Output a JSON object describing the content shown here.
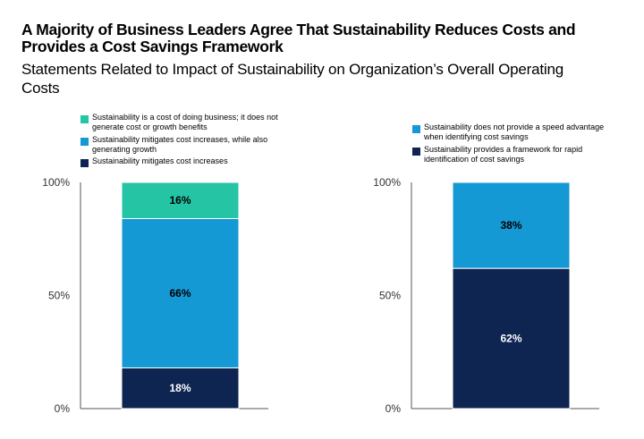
{
  "title": "A Majority of Business Leaders Agree That Sustainability Reduces Costs and Provides a Cost Savings Framework",
  "subtitle": "Statements Related to Impact of Sustainability on Organization’s Overall Operating Costs",
  "chart_data": [
    {
      "type": "bar",
      "stacked": true,
      "categories": [
        ""
      ],
      "ylim": [
        0,
        100
      ],
      "yticks": [
        "0%",
        "50%",
        "100%"
      ],
      "series": [
        {
          "name": "Sustainability mitigates cost increases",
          "values": [
            18
          ],
          "label": "18%",
          "color": "#0e2451",
          "text_color": "#ffffff"
        },
        {
          "name": "Sustainability mitigates cost increases, while also generating growth",
          "values": [
            66
          ],
          "label": "66%",
          "color": "#1599d5",
          "text_color": "#000000"
        },
        {
          "name": "Sustainability is a cost of doing business; it does not generate cost or growth benefits",
          "values": [
            16
          ],
          "label": "16%",
          "color": "#24c4a5",
          "text_color": "#000000"
        }
      ],
      "legend": [
        {
          "text": "Sustainability is a cost of doing business; it does not generate cost or growth benefits",
          "color": "#24c4a5"
        },
        {
          "text": "Sustainability mitigates cost increases, while also generating growth",
          "color": "#1599d5"
        },
        {
          "text": "Sustainability mitigates cost increases",
          "color": "#0e2451"
        }
      ]
    },
    {
      "type": "bar",
      "stacked": true,
      "categories": [
        ""
      ],
      "ylim": [
        0,
        100
      ],
      "yticks": [
        "0%",
        "50%",
        "100%"
      ],
      "series": [
        {
          "name": "Sustainability provides a framework for rapid identification of cost savings",
          "values": [
            62
          ],
          "label": "62%",
          "color": "#0e2451",
          "text_color": "#ffffff"
        },
        {
          "name": "Sustainability does not provide a speed advantage when identifying cost savings",
          "values": [
            38
          ],
          "label": "38%",
          "color": "#1599d5",
          "text_color": "#000000"
        }
      ],
      "legend": [
        {
          "text": "Sustainability does not provide a speed advantage when identifying cost savings",
          "color": "#1599d5"
        },
        {
          "text": "Sustainability provides a framework for rapid identification of cost savings",
          "color": "#0e2451"
        }
      ]
    }
  ]
}
